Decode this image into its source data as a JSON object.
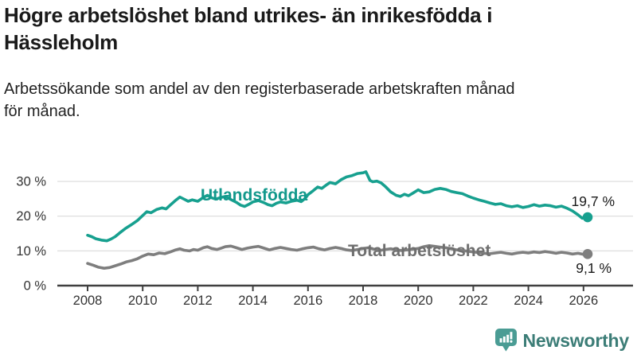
{
  "title": "Högre arbetslöshet bland utrikes- än inrikesfödda i\nHässleholm",
  "subtitle": "Arbetssökande som andel av den registerbaserade arbetskraften månad\nför månad.",
  "footer": {
    "brand": "Newsworthy",
    "logo_icon": "bar-chart-speech-bubble-icon"
  },
  "colors": {
    "title_text": "#1a1a1a",
    "grid": "#e1e1e1",
    "axis": "#3f3f3f",
    "tick_text": "#333333",
    "annotation_text": "#1a1a1a",
    "teal": "#17a08f",
    "gray": "#7e7e7e",
    "logo_icon": "#4a9c94",
    "logo_text": "#3c7d77"
  },
  "chart_data": {
    "type": "line",
    "title": "Högre arbetslöshet bland utrikes- än inrikesfödda i Hässleholm",
    "subtitle": "Arbetssökande som andel av den registerbaserade arbetskraften månad för månad.",
    "xlabel": "",
    "ylabel": "",
    "x_unit": "year (monthly observations)",
    "xlim": [
      2007.0,
      2026.9
    ],
    "ylim": [
      0,
      34
    ],
    "grid": "horizontal",
    "legend_position": "inline-labels",
    "yticks": [
      {
        "value": 0,
        "label": "0 %"
      },
      {
        "value": 10,
        "label": "10 %"
      },
      {
        "value": 20,
        "label": "20 %"
      },
      {
        "value": 30,
        "label": "30 %"
      }
    ],
    "xticks": [
      {
        "value": 2008,
        "label": "2008"
      },
      {
        "value": 2010,
        "label": "2010"
      },
      {
        "value": 2012,
        "label": "2012"
      },
      {
        "value": 2014,
        "label": "2014"
      },
      {
        "value": 2016,
        "label": "2016"
      },
      {
        "value": 2018,
        "label": "2018"
      },
      {
        "value": 2020,
        "label": "2020"
      },
      {
        "value": 2022,
        "label": "2022"
      },
      {
        "value": 2024,
        "label": "2024"
      },
      {
        "value": 2026,
        "label": "2026"
      }
    ],
    "series": [
      {
        "id": "utlandsfodda",
        "name": "Utlandsfödda",
        "color": "#17a08f",
        "label_color": "#13998c",
        "end_value": 19.7,
        "end_label": "19,7 %",
        "points": [
          [
            2008.0,
            14.5
          ],
          [
            2008.15,
            14.1
          ],
          [
            2008.3,
            13.5
          ],
          [
            2008.5,
            13.1
          ],
          [
            2008.7,
            12.9
          ],
          [
            2008.85,
            13.4
          ],
          [
            2009.0,
            14.1
          ],
          [
            2009.2,
            15.4
          ],
          [
            2009.4,
            16.6
          ],
          [
            2009.6,
            17.6
          ],
          [
            2009.8,
            18.7
          ],
          [
            2010.0,
            20.2
          ],
          [
            2010.15,
            21.3
          ],
          [
            2010.3,
            21.0
          ],
          [
            2010.5,
            21.9
          ],
          [
            2010.7,
            22.4
          ],
          [
            2010.85,
            22.1
          ],
          [
            2011.0,
            23.2
          ],
          [
            2011.2,
            24.6
          ],
          [
            2011.35,
            25.5
          ],
          [
            2011.5,
            24.9
          ],
          [
            2011.65,
            24.3
          ],
          [
            2011.8,
            24.7
          ],
          [
            2012.0,
            24.3
          ],
          [
            2012.2,
            25.4
          ],
          [
            2012.35,
            26.0
          ],
          [
            2012.5,
            25.3
          ],
          [
            2012.65,
            24.9
          ],
          [
            2012.8,
            25.3
          ],
          [
            2013.0,
            25.7
          ],
          [
            2013.2,
            24.8
          ],
          [
            2013.4,
            24.0
          ],
          [
            2013.55,
            23.2
          ],
          [
            2013.7,
            22.8
          ],
          [
            2013.85,
            23.4
          ],
          [
            2014.0,
            24.1
          ],
          [
            2014.2,
            24.5
          ],
          [
            2014.4,
            23.9
          ],
          [
            2014.55,
            23.3
          ],
          [
            2014.7,
            23.0
          ],
          [
            2014.85,
            23.7
          ],
          [
            2015.0,
            24.1
          ],
          [
            2015.2,
            23.8
          ],
          [
            2015.4,
            24.3
          ],
          [
            2015.6,
            24.6
          ],
          [
            2015.75,
            24.2
          ],
          [
            2015.9,
            25.1
          ],
          [
            2016.0,
            26.2
          ],
          [
            2016.2,
            27.4
          ],
          [
            2016.35,
            28.4
          ],
          [
            2016.5,
            28.0
          ],
          [
            2016.65,
            28.9
          ],
          [
            2016.8,
            29.7
          ],
          [
            2017.0,
            29.3
          ],
          [
            2017.2,
            30.5
          ],
          [
            2017.4,
            31.3
          ],
          [
            2017.6,
            31.7
          ],
          [
            2017.8,
            32.3
          ],
          [
            2018.0,
            32.5
          ],
          [
            2018.1,
            32.8
          ],
          [
            2018.25,
            30.3
          ],
          [
            2018.35,
            29.9
          ],
          [
            2018.5,
            30.1
          ],
          [
            2018.65,
            29.6
          ],
          [
            2018.8,
            28.6
          ],
          [
            2019.0,
            27.0
          ],
          [
            2019.2,
            26.0
          ],
          [
            2019.35,
            25.7
          ],
          [
            2019.5,
            26.3
          ],
          [
            2019.65,
            25.9
          ],
          [
            2019.8,
            26.6
          ],
          [
            2020.0,
            27.6
          ],
          [
            2020.2,
            26.8
          ],
          [
            2020.4,
            27.0
          ],
          [
            2020.6,
            27.7
          ],
          [
            2020.8,
            28.0
          ],
          [
            2021.0,
            27.7
          ],
          [
            2021.2,
            27.1
          ],
          [
            2021.4,
            26.8
          ],
          [
            2021.6,
            26.5
          ],
          [
            2021.8,
            25.8
          ],
          [
            2022.0,
            25.2
          ],
          [
            2022.2,
            24.7
          ],
          [
            2022.4,
            24.3
          ],
          [
            2022.6,
            23.8
          ],
          [
            2022.8,
            23.4
          ],
          [
            2023.0,
            23.6
          ],
          [
            2023.2,
            23.0
          ],
          [
            2023.4,
            22.7
          ],
          [
            2023.6,
            23.0
          ],
          [
            2023.8,
            22.5
          ],
          [
            2024.0,
            22.8
          ],
          [
            2024.2,
            23.3
          ],
          [
            2024.4,
            22.9
          ],
          [
            2024.6,
            23.2
          ],
          [
            2024.8,
            23.0
          ],
          [
            2025.0,
            22.6
          ],
          [
            2025.2,
            22.9
          ],
          [
            2025.4,
            22.3
          ],
          [
            2025.6,
            21.5
          ],
          [
            2025.8,
            20.4
          ],
          [
            2025.95,
            19.4
          ],
          [
            2026.15,
            19.7
          ]
        ]
      },
      {
        "id": "total",
        "name": "Total arbetslöshet",
        "color": "#7e7e7e",
        "label_color": "#6f6f6f",
        "end_value": 9.1,
        "end_label": "9,1 %",
        "points": [
          [
            2008.0,
            6.4
          ],
          [
            2008.2,
            5.9
          ],
          [
            2008.4,
            5.3
          ],
          [
            2008.6,
            5.0
          ],
          [
            2008.8,
            5.2
          ],
          [
            2009.0,
            5.7
          ],
          [
            2009.2,
            6.2
          ],
          [
            2009.4,
            6.8
          ],
          [
            2009.6,
            7.2
          ],
          [
            2009.8,
            7.7
          ],
          [
            2010.0,
            8.5
          ],
          [
            2010.2,
            9.1
          ],
          [
            2010.4,
            8.9
          ],
          [
            2010.6,
            9.4
          ],
          [
            2010.8,
            9.2
          ],
          [
            2011.0,
            9.7
          ],
          [
            2011.2,
            10.3
          ],
          [
            2011.35,
            10.6
          ],
          [
            2011.5,
            10.2
          ],
          [
            2011.7,
            10.0
          ],
          [
            2011.85,
            10.4
          ],
          [
            2012.0,
            10.2
          ],
          [
            2012.2,
            10.9
          ],
          [
            2012.35,
            11.2
          ],
          [
            2012.5,
            10.7
          ],
          [
            2012.7,
            10.4
          ],
          [
            2012.85,
            10.8
          ],
          [
            2013.0,
            11.2
          ],
          [
            2013.2,
            11.4
          ],
          [
            2013.4,
            10.9
          ],
          [
            2013.6,
            10.4
          ],
          [
            2013.8,
            10.8
          ],
          [
            2014.0,
            11.1
          ],
          [
            2014.2,
            11.3
          ],
          [
            2014.4,
            10.8
          ],
          [
            2014.6,
            10.3
          ],
          [
            2014.8,
            10.7
          ],
          [
            2015.0,
            11.0
          ],
          [
            2015.2,
            10.7
          ],
          [
            2015.4,
            10.4
          ],
          [
            2015.6,
            10.2
          ],
          [
            2015.8,
            10.6
          ],
          [
            2016.0,
            10.9
          ],
          [
            2016.2,
            11.1
          ],
          [
            2016.4,
            10.6
          ],
          [
            2016.6,
            10.3
          ],
          [
            2016.8,
            10.7
          ],
          [
            2017.0,
            11.0
          ],
          [
            2017.2,
            10.7
          ],
          [
            2017.4,
            10.3
          ],
          [
            2017.6,
            10.1
          ],
          [
            2017.8,
            10.4
          ],
          [
            2018.0,
            10.7
          ],
          [
            2018.2,
            10.9
          ],
          [
            2018.4,
            10.5
          ],
          [
            2018.6,
            10.1
          ],
          [
            2018.8,
            10.4
          ],
          [
            2019.0,
            10.6
          ],
          [
            2019.2,
            10.3
          ],
          [
            2019.4,
            10.1
          ],
          [
            2019.6,
            10.3
          ],
          [
            2019.8,
            10.5
          ],
          [
            2020.0,
            10.7
          ],
          [
            2020.2,
            11.2
          ],
          [
            2020.4,
            11.5
          ],
          [
            2020.6,
            11.3
          ],
          [
            2020.8,
            11.1
          ],
          [
            2021.0,
            10.9
          ],
          [
            2021.2,
            10.6
          ],
          [
            2021.4,
            10.3
          ],
          [
            2021.6,
            10.1
          ],
          [
            2021.8,
            9.9
          ],
          [
            2022.0,
            9.7
          ],
          [
            2022.2,
            9.5
          ],
          [
            2022.4,
            9.3
          ],
          [
            2022.6,
            9.2
          ],
          [
            2022.8,
            9.4
          ],
          [
            2023.0,
            9.6
          ],
          [
            2023.2,
            9.3
          ],
          [
            2023.4,
            9.1
          ],
          [
            2023.6,
            9.4
          ],
          [
            2023.8,
            9.6
          ],
          [
            2024.0,
            9.4
          ],
          [
            2024.2,
            9.7
          ],
          [
            2024.4,
            9.5
          ],
          [
            2024.6,
            9.8
          ],
          [
            2024.8,
            9.6
          ],
          [
            2025.0,
            9.3
          ],
          [
            2025.2,
            9.6
          ],
          [
            2025.4,
            9.4
          ],
          [
            2025.6,
            9.1
          ],
          [
            2025.8,
            9.3
          ],
          [
            2026.0,
            9.0
          ],
          [
            2026.15,
            9.1
          ]
        ]
      }
    ]
  }
}
